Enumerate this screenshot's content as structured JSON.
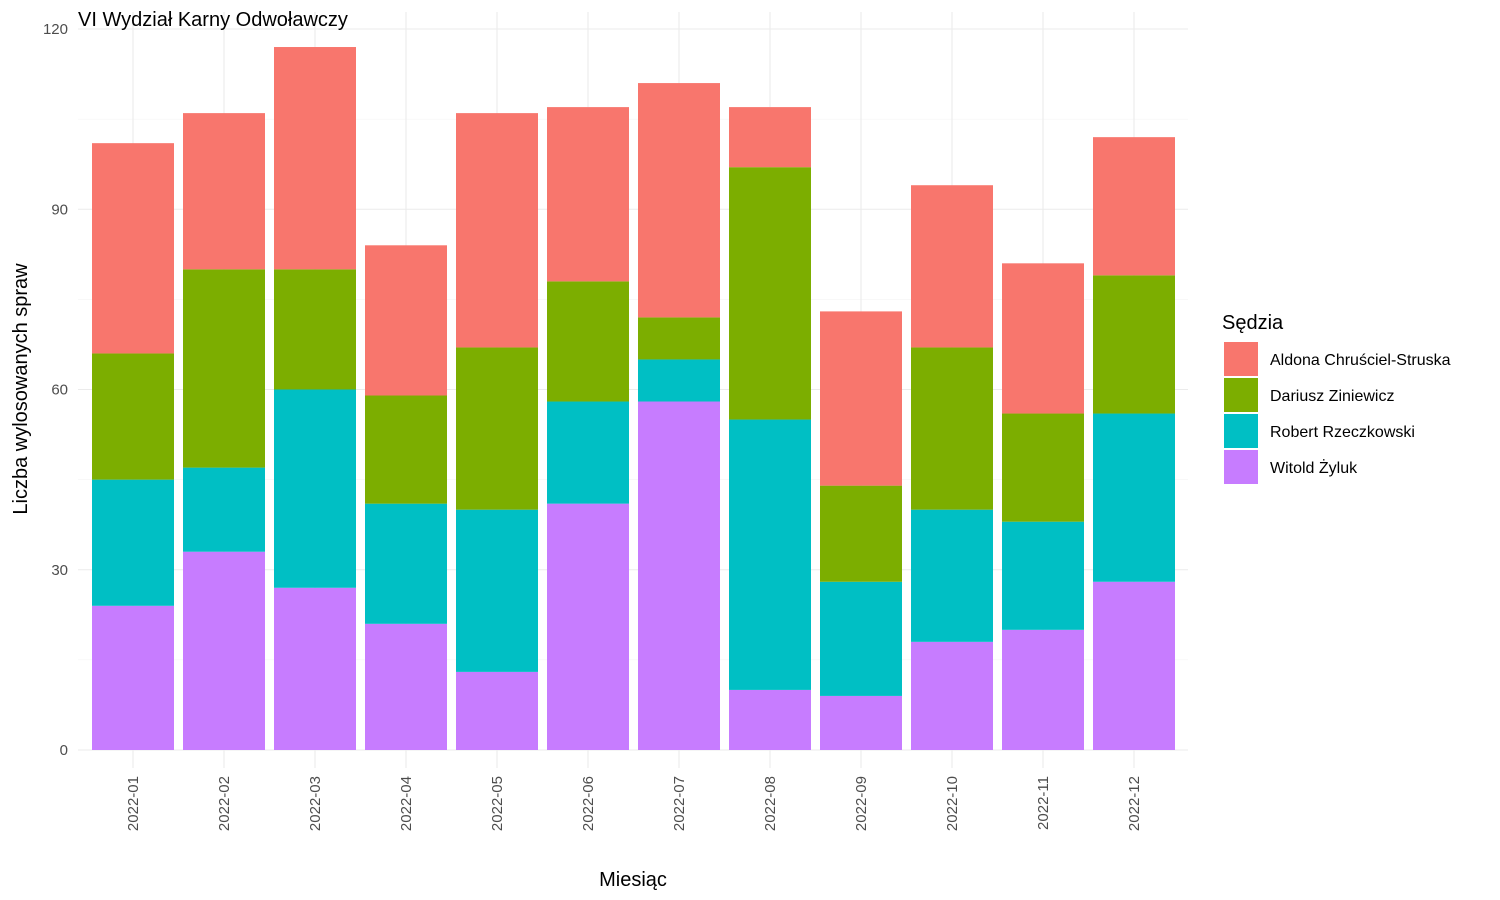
{
  "chart_data": {
    "type": "bar",
    "stacked": true,
    "title": "VI Wydział Karny Odwoławczy",
    "xlabel": "Miesiąc",
    "ylabel": "Liczba wylosowanych spraw",
    "ylim": [
      0,
      120
    ],
    "yticks": [
      "0",
      "30",
      "60",
      "90",
      "120"
    ],
    "grid": true,
    "legend_title": "Sędzia",
    "legend_position": "right",
    "categories": [
      "2022-01",
      "2022-02",
      "2022-03",
      "2022-04",
      "2022-05",
      "2022-06",
      "2022-07",
      "2022-08",
      "2022-09",
      "2022-10",
      "2022-11",
      "2022-12"
    ],
    "series": [
      {
        "name": "Aldona Chruściel-Struska",
        "color": "#F8766D",
        "values": [
          35,
          26,
          37,
          25,
          39,
          29,
          39,
          10,
          29,
          27,
          25,
          23
        ]
      },
      {
        "name": "Dariusz Ziniewicz",
        "color": "#7CAE00",
        "values": [
          21,
          33,
          20,
          18,
          27,
          20,
          7,
          42,
          16,
          27,
          18,
          23
        ]
      },
      {
        "name": "Robert Rzeczkowski",
        "color": "#00BFC4",
        "values": [
          21,
          14,
          33,
          20,
          27,
          17,
          7,
          45,
          19,
          22,
          18,
          28
        ]
      },
      {
        "name": "Witold Żyluk",
        "color": "#C77CFF",
        "values": [
          24,
          33,
          27,
          21,
          13,
          41,
          58,
          10,
          9,
          18,
          20,
          28
        ]
      }
    ]
  }
}
